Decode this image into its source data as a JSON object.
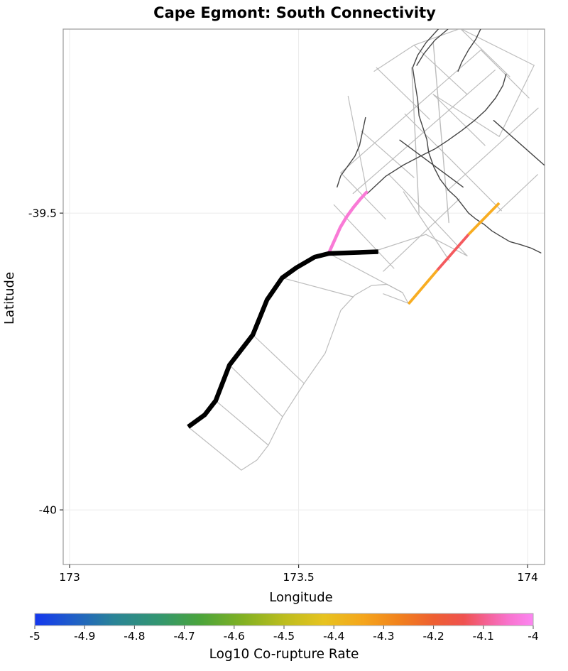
{
  "chart_data": {
    "type": "line",
    "title": "Cape Egmont: South Connectivity",
    "xlabel": "Longitude",
    "ylabel": "Latitude",
    "xlim": [
      172.986,
      174.037
    ],
    "ylim": [
      -40.092,
      -39.19
    ],
    "xticks": [
      173,
      173.5,
      174
    ],
    "xtick_labels": [
      "173",
      "173.5",
      "174"
    ],
    "yticks": [
      -39.5,
      -40
    ],
    "ytick_labels": [
      "-39.5",
      "-40"
    ],
    "grid": true,
    "colorbar": {
      "label": "Log10 Co-rupture Rate",
      "min": -5,
      "max": -4,
      "tick_values": [
        -5,
        -4.9,
        -4.8,
        -4.7,
        -4.6,
        -4.5,
        -4.4,
        -4.3,
        -4.2,
        -4.1,
        -4
      ],
      "tick_labels": [
        "-5",
        "-4.9",
        "-4.8",
        "-4.7",
        "-4.6",
        "-4.5",
        "-4.4",
        "-4.3",
        "-4.2",
        "-4.1",
        "-4"
      ],
      "gradient": [
        {
          "pos": 0.0,
          "color": "#1437ee"
        },
        {
          "pos": 0.08,
          "color": "#2060c6"
        },
        {
          "pos": 0.16,
          "color": "#2a8496"
        },
        {
          "pos": 0.25,
          "color": "#339670"
        },
        {
          "pos": 0.33,
          "color": "#4aa43c"
        },
        {
          "pos": 0.42,
          "color": "#83b122"
        },
        {
          "pos": 0.5,
          "color": "#bcbd1e"
        },
        {
          "pos": 0.58,
          "color": "#e7c31f"
        },
        {
          "pos": 0.66,
          "color": "#f5a51c"
        },
        {
          "pos": 0.73,
          "color": "#f1821d"
        },
        {
          "pos": 0.8,
          "color": "#ee5f31"
        },
        {
          "pos": 0.86,
          "color": "#ef524f"
        },
        {
          "pos": 0.91,
          "color": "#f4639a"
        },
        {
          "pos": 0.95,
          "color": "#f873cd"
        },
        {
          "pos": 1.0,
          "color": "#fc86f2"
        }
      ]
    },
    "style": {
      "grid_color": "#ebebeb",
      "frame_color": "#999999",
      "trace_light_color": "#b6b6b6",
      "trace_dark_color": "#454545",
      "source_color": "#000000",
      "pink_color": "#f97ad6",
      "orange_color": "#f8ad22",
      "red_color": "#f45a5e"
    },
    "features": [
      {
        "name": "fault-outline-ribbon-edge",
        "kind": "light",
        "width": 1.2,
        "points": [
          [
            173.26,
            -39.861
          ],
          [
            173.375,
            -39.933
          ],
          [
            173.409,
            -39.916
          ],
          [
            173.434,
            -39.891
          ],
          [
            173.465,
            -39.843
          ],
          [
            173.512,
            -39.787
          ],
          [
            173.558,
            -39.736
          ],
          [
            173.592,
            -39.664
          ],
          [
            173.623,
            -39.638
          ],
          [
            173.659,
            -39.622
          ],
          [
            173.693,
            -39.62
          ],
          [
            173.727,
            -39.634
          ],
          [
            173.74,
            -39.653
          ]
        ]
      },
      {
        "name": "fault-outline-tie-1",
        "kind": "light",
        "width": 1.2,
        "points": [
          [
            173.319,
            -39.816
          ],
          [
            173.434,
            -39.891
          ]
        ]
      },
      {
        "name": "fault-outline-tie-2",
        "kind": "light",
        "width": 1.2,
        "points": [
          [
            173.349,
            -39.756
          ],
          [
            173.465,
            -39.843
          ]
        ]
      },
      {
        "name": "fault-outline-tie-3",
        "kind": "light",
        "width": 1.2,
        "points": [
          [
            173.4,
            -39.705
          ],
          [
            173.512,
            -39.787
          ]
        ]
      },
      {
        "name": "fault-outline-tie-4",
        "kind": "light",
        "width": 1.2,
        "points": [
          [
            173.464,
            -39.609
          ],
          [
            173.619,
            -39.641
          ]
        ]
      },
      {
        "name": "fault-outline-tie-5",
        "kind": "light",
        "width": 1.2,
        "points": [
          [
            173.566,
            -39.568
          ],
          [
            173.727,
            -39.634
          ]
        ]
      },
      {
        "name": "fault-outline-g1",
        "kind": "light",
        "width": 1.2,
        "points": [
          [
            173.592,
            -39.432
          ],
          [
            173.898,
            -39.225
          ]
        ]
      },
      {
        "name": "fault-outline-g2",
        "kind": "light",
        "width": 1.2,
        "points": [
          [
            173.619,
            -39.467
          ],
          [
            173.929,
            -39.259
          ]
        ]
      },
      {
        "name": "fault-outline-g4",
        "kind": "light",
        "width": 1.2,
        "points": [
          [
            173.637,
            -39.362
          ],
          [
            173.752,
            -39.44
          ]
        ]
      },
      {
        "name": "fault-outline-g5",
        "kind": "light",
        "width": 1.2,
        "points": [
          [
            173.67,
            -39.255
          ],
          [
            173.786,
            -39.342
          ]
        ]
      },
      {
        "name": "fault-outline-g6",
        "kind": "light",
        "width": 1.2,
        "points": [
          [
            173.752,
            -39.217
          ],
          [
            173.868,
            -39.3
          ]
        ]
      },
      {
        "name": "fault-outline-g7",
        "kind": "light",
        "width": 1.2,
        "points": [
          [
            173.853,
            -39.189
          ],
          [
            173.961,
            -39.27
          ]
        ]
      },
      {
        "name": "fault-outline-g8",
        "kind": "light",
        "width": 1.2,
        "points": [
          [
            173.898,
            -39.225
          ],
          [
            174.003,
            -39.306
          ]
        ]
      },
      {
        "name": "fault-outline-g9",
        "kind": "light",
        "width": 1.2,
        "points": [
          [
            173.732,
            -39.333
          ],
          [
            173.84,
            -39.416
          ]
        ]
      },
      {
        "name": "fault-outline-g10",
        "kind": "light",
        "width": 1.2,
        "points": [
          [
            173.794,
            -39.3
          ],
          [
            173.907,
            -39.386
          ]
        ]
      },
      {
        "name": "fault-outline-g11",
        "kind": "light",
        "width": 1.2,
        "points": [
          [
            173.84,
            -39.416
          ],
          [
            173.943,
            -39.496
          ]
        ]
      },
      {
        "name": "fault-outline-g12",
        "kind": "light",
        "width": 1.2,
        "points": [
          [
            173.696,
            -39.434
          ],
          [
            173.797,
            -39.514
          ]
        ]
      },
      {
        "name": "fault-outline-g13",
        "kind": "light",
        "width": 1.2,
        "points": [
          [
            173.797,
            -39.514
          ],
          [
            173.868,
            -39.572
          ]
        ]
      },
      {
        "name": "fault-outline-g14",
        "kind": "light",
        "width": 1.2,
        "points": [
          [
            173.592,
            -39.432
          ],
          [
            173.69,
            -39.51
          ]
        ]
      },
      {
        "name": "fault-outline-g15",
        "kind": "light",
        "width": 1.4,
        "points": [
          [
            173.747,
            -39.255
          ],
          [
            173.763,
            -39.5
          ]
        ]
      },
      {
        "name": "fault-outline-g16",
        "kind": "light",
        "width": 1.4,
        "points": [
          [
            173.794,
            -39.213
          ],
          [
            173.828,
            -39.516
          ]
        ]
      },
      {
        "name": "fault-outline-g17",
        "kind": "light",
        "width": 1.2,
        "points": [
          [
            173.665,
            -39.261
          ],
          [
            173.752,
            -39.217
          ]
        ]
      },
      {
        "name": "fault-outline-g18",
        "kind": "light",
        "width": 1.2,
        "points": [
          [
            173.752,
            -39.217
          ],
          [
            173.853,
            -39.189
          ]
        ]
      },
      {
        "name": "fault-outline-g19",
        "kind": "light",
        "width": 1.2,
        "points": [
          [
            173.853,
            -39.189
          ],
          [
            174.014,
            -39.251
          ]
        ]
      },
      {
        "name": "fault-outline-g20",
        "kind": "light",
        "width": 1.2,
        "points": [
          [
            174.014,
            -39.251
          ],
          [
            173.938,
            -39.371
          ],
          [
            173.794,
            -39.3
          ]
        ]
      },
      {
        "name": "fault-outline-g21",
        "kind": "light",
        "width": 1.2,
        "points": [
          [
            173.685,
            -39.598
          ],
          [
            173.851,
            -39.476
          ]
        ]
      },
      {
        "name": "fault-outline-g22",
        "kind": "light",
        "width": 1.2,
        "points": [
          [
            173.685,
            -39.636
          ],
          [
            173.74,
            -39.652
          ]
        ]
      },
      {
        "name": "fault-outline-g23",
        "kind": "light",
        "width": 1.2,
        "points": [
          [
            173.729,
            -39.464
          ],
          [
            173.829,
            -39.58
          ]
        ]
      },
      {
        "name": "fault-outline-g24",
        "kind": "light",
        "width": 1.2,
        "points": [
          [
            173.577,
            -39.486
          ],
          [
            173.708,
            -39.593
          ]
        ]
      },
      {
        "name": "fault-outline-g25",
        "kind": "light",
        "width": 1.2,
        "points": [
          [
            173.608,
            -39.303
          ],
          [
            173.65,
            -39.467
          ]
        ]
      },
      {
        "name": "fault-outline-g26",
        "kind": "light",
        "width": 1.2,
        "points": [
          [
            173.674,
            -39.562
          ],
          [
            173.778,
            -39.536
          ]
        ]
      },
      {
        "name": "fault-outline-g27",
        "kind": "light",
        "width": 1.2,
        "points": [
          [
            173.778,
            -39.536
          ],
          [
            173.868,
            -39.572
          ]
        ]
      },
      {
        "name": "fault-outline-g28",
        "kind": "light",
        "width": 1.2,
        "points": [
          [
            173.825,
            -39.462
          ],
          [
            174.023,
            -39.323
          ]
        ]
      },
      {
        "name": "fault-outline-g29",
        "kind": "light",
        "width": 1.2,
        "points": [
          [
            173.933,
            -39.5
          ],
          [
            174.022,
            -39.435
          ]
        ]
      },
      {
        "name": "fault-trace-dark-1",
        "kind": "dark",
        "width": 1.4,
        "points": [
          [
            173.805,
            -39.19
          ],
          [
            173.778,
            -39.213
          ],
          [
            173.76,
            -39.234
          ],
          [
            173.749,
            -39.255
          ],
          [
            173.753,
            -39.276
          ],
          [
            173.76,
            -39.309
          ],
          [
            173.763,
            -39.336
          ],
          [
            173.772,
            -39.357
          ],
          [
            173.78,
            -39.376
          ],
          [
            173.784,
            -39.398
          ],
          [
            173.795,
            -39.422
          ],
          [
            173.809,
            -39.443
          ],
          [
            173.828,
            -39.462
          ],
          [
            173.845,
            -39.474
          ],
          [
            173.859,
            -39.488
          ],
          [
            173.871,
            -39.5
          ],
          [
            173.887,
            -39.51
          ],
          [
            173.905,
            -39.519
          ],
          [
            173.922,
            -39.53
          ],
          [
            173.941,
            -39.539
          ],
          [
            173.961,
            -39.548
          ],
          [
            173.984,
            -39.553
          ],
          [
            174.008,
            -39.559
          ],
          [
            174.029,
            -39.567
          ]
        ]
      },
      {
        "name": "fault-trace-dark-1b",
        "kind": "dark",
        "width": 1.4,
        "points": [
          [
            173.826,
            -39.19
          ],
          [
            173.797,
            -39.209
          ],
          [
            173.774,
            -39.231
          ],
          [
            173.758,
            -39.251
          ]
        ]
      },
      {
        "name": "fault-trace-dark-2",
        "kind": "dark",
        "width": 1.4,
        "points": [
          [
            173.65,
            -39.467
          ],
          [
            173.69,
            -39.438
          ],
          [
            173.729,
            -39.419
          ],
          [
            173.766,
            -39.404
          ],
          [
            173.797,
            -39.392
          ],
          [
            173.825,
            -39.378
          ],
          [
            173.856,
            -39.361
          ],
          [
            173.884,
            -39.344
          ],
          [
            173.908,
            -39.327
          ],
          [
            173.93,
            -39.306
          ],
          [
            173.946,
            -39.285
          ],
          [
            173.953,
            -39.266
          ]
        ]
      },
      {
        "name": "fault-trace-dark-4",
        "kind": "dark",
        "width": 1.4,
        "points": [
          [
            173.926,
            -39.344
          ],
          [
            174.036,
            -39.419
          ]
        ]
      },
      {
        "name": "fault-trace-dark-5",
        "kind": "dark",
        "width": 1.4,
        "points": [
          [
            173.584,
            -39.456
          ],
          [
            173.592,
            -39.437
          ],
          [
            173.608,
            -39.42
          ],
          [
            173.623,
            -39.404
          ],
          [
            173.633,
            -39.386
          ],
          [
            173.64,
            -39.361
          ],
          [
            173.646,
            -39.339
          ]
        ]
      },
      {
        "name": "fault-trace-dark-6",
        "kind": "dark",
        "width": 1.4,
        "points": [
          [
            173.721,
            -39.377
          ],
          [
            173.859,
            -39.456
          ]
        ]
      },
      {
        "name": "fault-trace-dark-8",
        "kind": "dark",
        "width": 1.4,
        "points": [
          [
            173.898,
            -39.189
          ],
          [
            173.887,
            -39.207
          ],
          [
            173.871,
            -39.225
          ],
          [
            173.856,
            -39.246
          ],
          [
            173.848,
            -39.261
          ]
        ]
      },
      {
        "name": "corupture-segment-orange-north",
        "kind": "orange",
        "width": 3.8,
        "points": [
          [
            173.938,
            -39.483
          ],
          [
            173.871,
            -39.536
          ]
        ]
      },
      {
        "name": "corupture-segment-red",
        "kind": "red",
        "width": 3.8,
        "points": [
          [
            173.871,
            -39.536
          ],
          [
            173.803,
            -39.596
          ]
        ]
      },
      {
        "name": "corupture-segment-orange-south",
        "kind": "orange",
        "width": 3.8,
        "points": [
          [
            173.803,
            -39.596
          ],
          [
            173.74,
            -39.653
          ]
        ]
      },
      {
        "name": "corupture-segment-pink",
        "kind": "pink",
        "width": 4.5,
        "points": [
          [
            173.566,
            -39.567
          ],
          [
            173.577,
            -39.548
          ],
          [
            173.591,
            -39.524
          ],
          [
            173.605,
            -39.506
          ],
          [
            173.62,
            -39.49
          ],
          [
            173.634,
            -39.477
          ],
          [
            173.648,
            -39.465
          ]
        ]
      },
      {
        "name": "source-fault-cape-egmont-south",
        "kind": "source",
        "width": 6.5,
        "points": [
          [
            173.259,
            -39.86
          ],
          [
            173.295,
            -39.84
          ],
          [
            173.319,
            -39.816
          ],
          [
            173.349,
            -39.756
          ],
          [
            173.4,
            -39.705
          ],
          [
            173.431,
            -39.646
          ],
          [
            173.464,
            -39.609
          ],
          [
            173.495,
            -39.592
          ],
          [
            173.535,
            -39.574
          ],
          [
            173.566,
            -39.568
          ],
          [
            173.674,
            -39.565
          ]
        ]
      }
    ]
  }
}
